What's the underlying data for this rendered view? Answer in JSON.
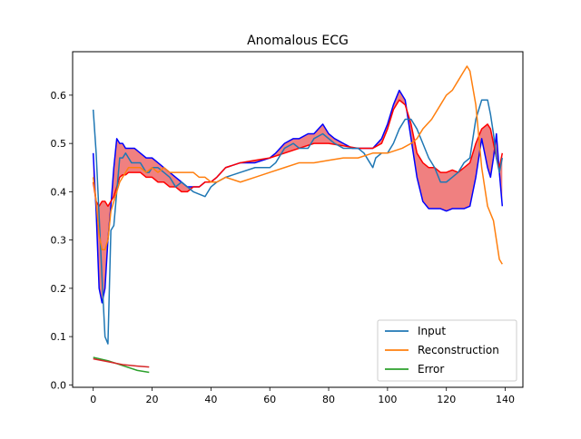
{
  "chart_data": {
    "type": "line",
    "title": "Anomalous ECG",
    "xlabel": "",
    "ylabel": "",
    "xlim": [
      -7,
      146
    ],
    "ylim": [
      -0.005,
      0.69
    ],
    "x_ticks": [
      0,
      20,
      40,
      60,
      80,
      100,
      120,
      140
    ],
    "y_ticks": [
      0.0,
      0.1,
      0.2,
      0.3,
      0.4,
      0.5,
      0.6
    ],
    "y_tick_labels": [
      "0.0",
      "0.1",
      "0.2",
      "0.3",
      "0.4",
      "0.5",
      "0.6"
    ],
    "grid": false,
    "legend_position": "lower-right",
    "legend": [
      {
        "label": "Input",
        "color": "#1f77b4"
      },
      {
        "label": "Reconstruction",
        "color": "#ff7f0e"
      },
      {
        "label": "Error",
        "color": "#2ca02c"
      }
    ],
    "series": [
      {
        "name": "Input",
        "color": "#1f77b4",
        "x": [
          0,
          1,
          2,
          3,
          4,
          5,
          6,
          7,
          8,
          9,
          10,
          11,
          12,
          13,
          14,
          15,
          16,
          17,
          18,
          19,
          20,
          22,
          24,
          26,
          28,
          30,
          32,
          34,
          36,
          38,
          40,
          42,
          45,
          50,
          55,
          60,
          62,
          65,
          68,
          70,
          73,
          75,
          78,
          80,
          82,
          85,
          88,
          90,
          92,
          94,
          95,
          96,
          98,
          100,
          102,
          104,
          106,
          108,
          110,
          112,
          114,
          116,
          118,
          120,
          122,
          124,
          126,
          128,
          130,
          132,
          134,
          135,
          136,
          137,
          138,
          139
        ],
        "values": [
          0.57,
          0.48,
          0.35,
          0.22,
          0.1,
          0.085,
          0.32,
          0.33,
          0.4,
          0.47,
          0.47,
          0.48,
          0.47,
          0.46,
          0.46,
          0.46,
          0.46,
          0.45,
          0.44,
          0.44,
          0.45,
          0.45,
          0.44,
          0.43,
          0.41,
          0.42,
          0.41,
          0.4,
          0.395,
          0.39,
          0.41,
          0.42,
          0.43,
          0.44,
          0.45,
          0.45,
          0.46,
          0.49,
          0.5,
          0.49,
          0.49,
          0.51,
          0.52,
          0.51,
          0.5,
          0.49,
          0.49,
          0.49,
          0.48,
          0.46,
          0.45,
          0.47,
          0.48,
          0.48,
          0.5,
          0.53,
          0.55,
          0.55,
          0.53,
          0.5,
          0.47,
          0.45,
          0.42,
          0.42,
          0.43,
          0.44,
          0.46,
          0.47,
          0.55,
          0.59,
          0.59,
          0.56,
          0.52,
          0.47,
          0.44,
          0.47
        ]
      },
      {
        "name": "Reconstruction",
        "color": "#ff7f0e",
        "x": [
          0,
          1,
          2,
          3,
          4,
          5,
          6,
          7,
          8,
          9,
          10,
          11,
          12,
          14,
          16,
          18,
          20,
          22,
          24,
          26,
          28,
          30,
          32,
          34,
          36,
          38,
          40,
          42,
          45,
          50,
          55,
          60,
          65,
          70,
          75,
          80,
          85,
          90,
          95,
          100,
          105,
          108,
          110,
          112,
          115,
          118,
          120,
          122,
          124,
          126,
          127,
          128,
          130,
          132,
          134,
          136,
          138,
          139
        ],
        "values": [
          0.43,
          0.38,
          0.31,
          0.28,
          0.28,
          0.3,
          0.36,
          0.38,
          0.4,
          0.42,
          0.43,
          0.44,
          0.45,
          0.45,
          0.45,
          0.44,
          0.45,
          0.44,
          0.45,
          0.44,
          0.44,
          0.44,
          0.44,
          0.44,
          0.43,
          0.43,
          0.42,
          0.42,
          0.43,
          0.42,
          0.43,
          0.44,
          0.45,
          0.46,
          0.46,
          0.465,
          0.47,
          0.47,
          0.48,
          0.48,
          0.49,
          0.5,
          0.51,
          0.53,
          0.55,
          0.58,
          0.6,
          0.61,
          0.63,
          0.65,
          0.66,
          0.65,
          0.58,
          0.45,
          0.37,
          0.34,
          0.26,
          0.25
        ]
      },
      {
        "name": "Error",
        "color": "#2ca02c",
        "x": [
          0,
          5,
          10,
          15,
          19
        ],
        "values": [
          0.057,
          0.05,
          0.04,
          0.03,
          0.026
        ]
      },
      {
        "name": "",
        "color": "#d62728",
        "x": [
          0,
          5,
          10,
          15,
          19
        ],
        "values": [
          0.054,
          0.048,
          0.042,
          0.039,
          0.037
        ]
      }
    ],
    "band": {
      "fill_color": "#f08080",
      "upper": {
        "color": "#0000ff",
        "x": [
          0,
          1,
          2,
          3,
          4,
          5,
          6,
          7,
          8,
          9,
          10,
          11,
          12,
          14,
          16,
          18,
          20,
          22,
          24,
          26,
          28,
          30,
          32,
          34,
          36,
          38,
          40,
          42,
          45,
          50,
          55,
          60,
          62,
          65,
          68,
          70,
          73,
          75,
          78,
          80,
          82,
          85,
          88,
          90,
          92,
          95,
          98,
          100,
          102,
          104,
          106,
          108,
          109,
          110,
          112,
          114,
          116,
          118,
          120,
          122,
          124,
          126,
          128,
          130,
          132,
          134,
          135,
          136,
          137,
          138,
          139
        ],
        "values": [
          0.48,
          0.36,
          0.2,
          0.17,
          0.2,
          0.3,
          0.37,
          0.45,
          0.51,
          0.5,
          0.5,
          0.49,
          0.49,
          0.49,
          0.48,
          0.47,
          0.47,
          0.46,
          0.45,
          0.44,
          0.43,
          0.42,
          0.41,
          0.41,
          0.41,
          0.42,
          0.42,
          0.43,
          0.45,
          0.46,
          0.46,
          0.47,
          0.48,
          0.5,
          0.51,
          0.51,
          0.52,
          0.52,
          0.54,
          0.52,
          0.51,
          0.5,
          0.49,
          0.49,
          0.49,
          0.49,
          0.51,
          0.54,
          0.58,
          0.61,
          0.59,
          0.51,
          0.47,
          0.43,
          0.38,
          0.365,
          0.365,
          0.365,
          0.36,
          0.365,
          0.365,
          0.365,
          0.37,
          0.43,
          0.51,
          0.45,
          0.43,
          0.47,
          0.52,
          0.44,
          0.37
        ]
      },
      "lower": {
        "color": "#ff0000",
        "x": [
          0,
          1,
          2,
          3,
          4,
          5,
          6,
          7,
          8,
          9,
          10,
          11,
          12,
          14,
          16,
          18,
          20,
          22,
          24,
          26,
          28,
          30,
          32,
          34,
          36,
          38,
          40,
          42,
          45,
          50,
          55,
          60,
          65,
          70,
          75,
          80,
          85,
          90,
          95,
          98,
          100,
          102,
          104,
          106,
          108,
          110,
          112,
          114,
          116,
          118,
          120,
          122,
          124,
          126,
          128,
          130,
          132,
          134,
          135,
          136,
          137,
          138,
          139
        ],
        "values": [
          0.42,
          0.38,
          0.37,
          0.38,
          0.38,
          0.37,
          0.38,
          0.39,
          0.41,
          0.43,
          0.435,
          0.435,
          0.44,
          0.44,
          0.44,
          0.43,
          0.43,
          0.42,
          0.42,
          0.41,
          0.41,
          0.4,
          0.4,
          0.41,
          0.41,
          0.42,
          0.42,
          0.43,
          0.45,
          0.46,
          0.465,
          0.47,
          0.48,
          0.49,
          0.5,
          0.5,
          0.495,
          0.49,
          0.49,
          0.5,
          0.53,
          0.57,
          0.59,
          0.58,
          0.54,
          0.48,
          0.46,
          0.45,
          0.45,
          0.44,
          0.44,
          0.445,
          0.44,
          0.45,
          0.46,
          0.5,
          0.53,
          0.54,
          0.53,
          0.5,
          0.47,
          0.45,
          0.48
        ]
      }
    }
  }
}
